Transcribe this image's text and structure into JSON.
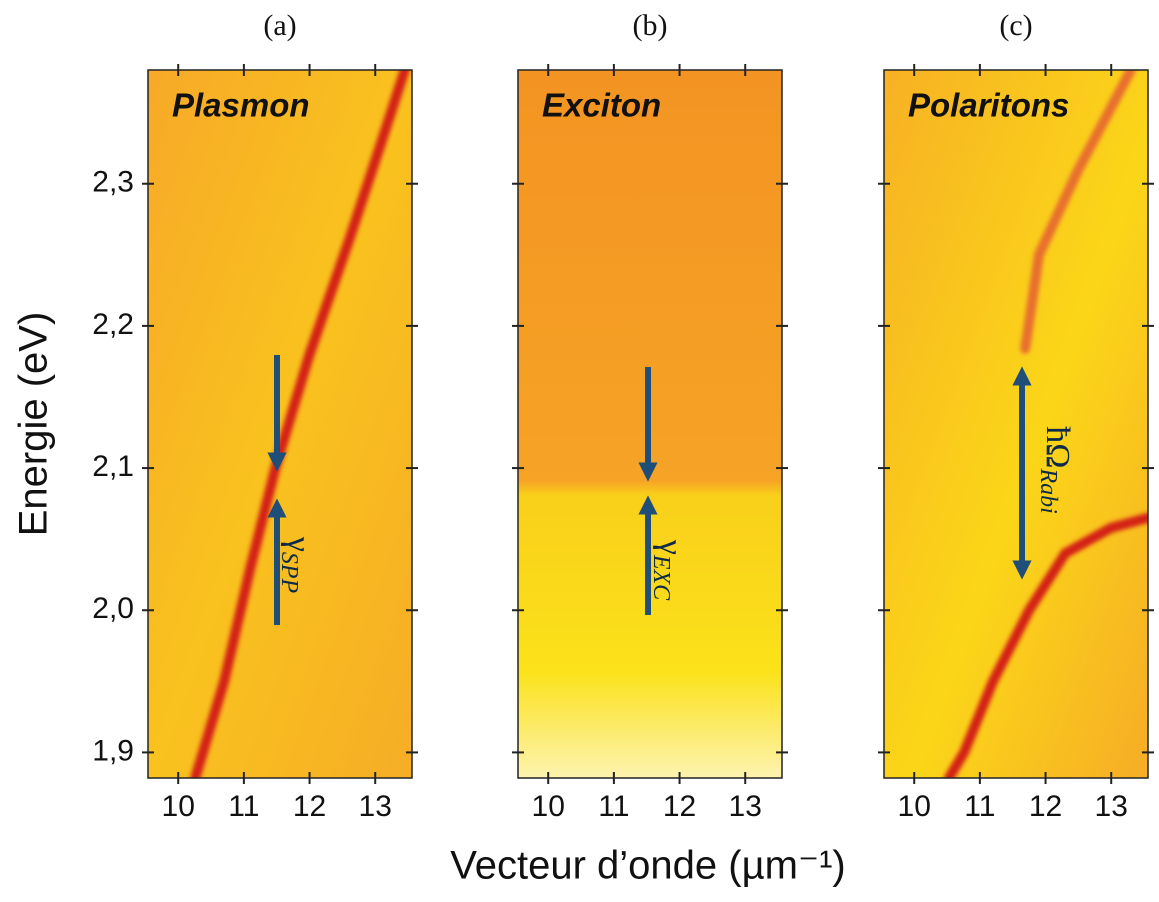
{
  "chart_data": [
    {
      "type": "line",
      "panel_label": "(a)",
      "title": "Plasmon",
      "ylabel": "Energie (eV)",
      "annotation": {
        "symbol": "γ",
        "subscript": "SPP"
      },
      "xlim": [
        9.54,
        13.56
      ],
      "xticks": [
        10,
        11,
        12,
        13
      ],
      "ylim": [
        1.882,
        2.38
      ],
      "yticks": [
        {
          "value": 1.9,
          "label": "1,9"
        },
        {
          "value": 2.0,
          "label": "2,0"
        },
        {
          "value": 2.1,
          "label": "2,1"
        },
        {
          "value": 2.2,
          "label": "2,2"
        },
        {
          "value": 2.3,
          "label": "2,3"
        }
      ],
      "series": [
        {
          "color": "#d42418",
          "x": [
            10.26,
            10.7,
            11.1,
            11.48,
            12.0,
            12.6,
            13.1,
            13.45
          ],
          "values": [
            1.882,
            1.95,
            2.03,
            2.1,
            2.18,
            2.26,
            2.33,
            2.38
          ]
        }
      ]
    },
    {
      "type": "line",
      "panel_label": "(b)",
      "title": "Exciton",
      "xlabel": "Vecteur d’onde (µm⁻¹)",
      "annotation": {
        "symbol": "γ",
        "subscript": "EXC"
      },
      "xlim": [
        9.54,
        13.56
      ],
      "xticks": [
        10,
        11,
        12,
        13
      ],
      "ylim": [
        1.882,
        2.38
      ],
      "yticks": [
        1.9,
        2.0,
        2.1,
        2.2,
        2.3
      ],
      "series": [
        {
          "color": "#e0441a",
          "x": [
            9.54,
            13.56
          ],
          "values": [
            2.089,
            2.089
          ]
        }
      ]
    },
    {
      "type": "line",
      "panel_label": "(c)",
      "title": "Polaritons",
      "annotation": {
        "symbol": "ħΩ",
        "subscript": "Rabi"
      },
      "xlim": [
        9.54,
        13.56
      ],
      "xticks": [
        10,
        11,
        12,
        13
      ],
      "ylim": [
        1.882,
        2.38
      ],
      "yticks": [
        1.9,
        2.0,
        2.1,
        2.2,
        2.3
      ],
      "series": [
        {
          "color": "#d42418",
          "x": [
            10.53,
            10.76,
            11.2,
            11.75,
            12.3,
            13.0,
            13.56
          ],
          "values": [
            1.882,
            1.9,
            1.95,
            2.0,
            2.04,
            2.058,
            2.065
          ]
        },
        {
          "color": "#e8702e",
          "x": [
            11.69,
            11.9,
            12.5,
            13.3
          ],
          "values": [
            2.184,
            2.25,
            2.31,
            2.38
          ]
        }
      ]
    }
  ]
}
